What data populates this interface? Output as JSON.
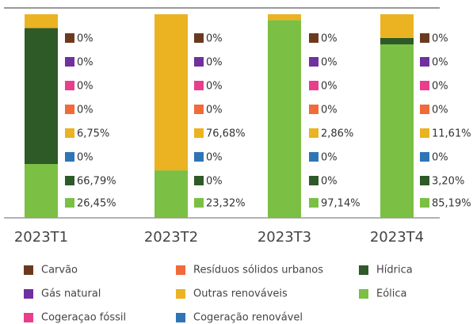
{
  "chart_data": {
    "type": "stacked_bar",
    "categories": [
      "2023T1",
      "2023T2",
      "2023T3",
      "2023T4"
    ],
    "ylim": [
      0,
      100
    ],
    "series": [
      {
        "name": "Carvão",
        "color": "#6b3a1e",
        "values": [
          0,
          0,
          0,
          0
        ],
        "value_labels": [
          "0%",
          "0%",
          "0%",
          "0%"
        ]
      },
      {
        "name": "Gás natural",
        "color": "#7030a0",
        "values": [
          0,
          0,
          0,
          0
        ],
        "value_labels": [
          "0%",
          "0%",
          "0%",
          "0%"
        ]
      },
      {
        "name": "Cogeraçao fóssil",
        "color": "#e83e8c",
        "values": [
          0,
          0,
          0,
          0
        ],
        "value_labels": [
          "0%",
          "0%",
          "0%",
          "0%"
        ]
      },
      {
        "name": "Resíduos sólidos urbanos",
        "color": "#f06a3a",
        "values": [
          0,
          0,
          0,
          0
        ],
        "value_labels": [
          "0%",
          "0%",
          "0%",
          "0%"
        ]
      },
      {
        "name": "Outras renováveis",
        "color": "#ebb321",
        "values": [
          6.75,
          76.68,
          2.86,
          11.61
        ],
        "value_labels": [
          "6,75%",
          "76,68%",
          "2,86%",
          "11,61%"
        ]
      },
      {
        "name": "Cogeração renovável",
        "color": "#2e75b6",
        "values": [
          0,
          0,
          0,
          0
        ],
        "value_labels": [
          "0%",
          "0%",
          "0%",
          "0%"
        ]
      },
      {
        "name": "Hídrica",
        "color": "#2d5a27",
        "values": [
          66.79,
          0,
          0,
          3.2
        ],
        "value_labels": [
          "66,79%",
          "0%",
          "0%",
          "3,20%"
        ]
      },
      {
        "name": "Eólica",
        "color": "#7bbf44",
        "values": [
          26.45,
          23.32,
          97.14,
          85.19
        ],
        "value_labels": [
          "26,45%",
          "23,32%",
          "97,14%",
          "85,19%"
        ]
      }
    ]
  }
}
